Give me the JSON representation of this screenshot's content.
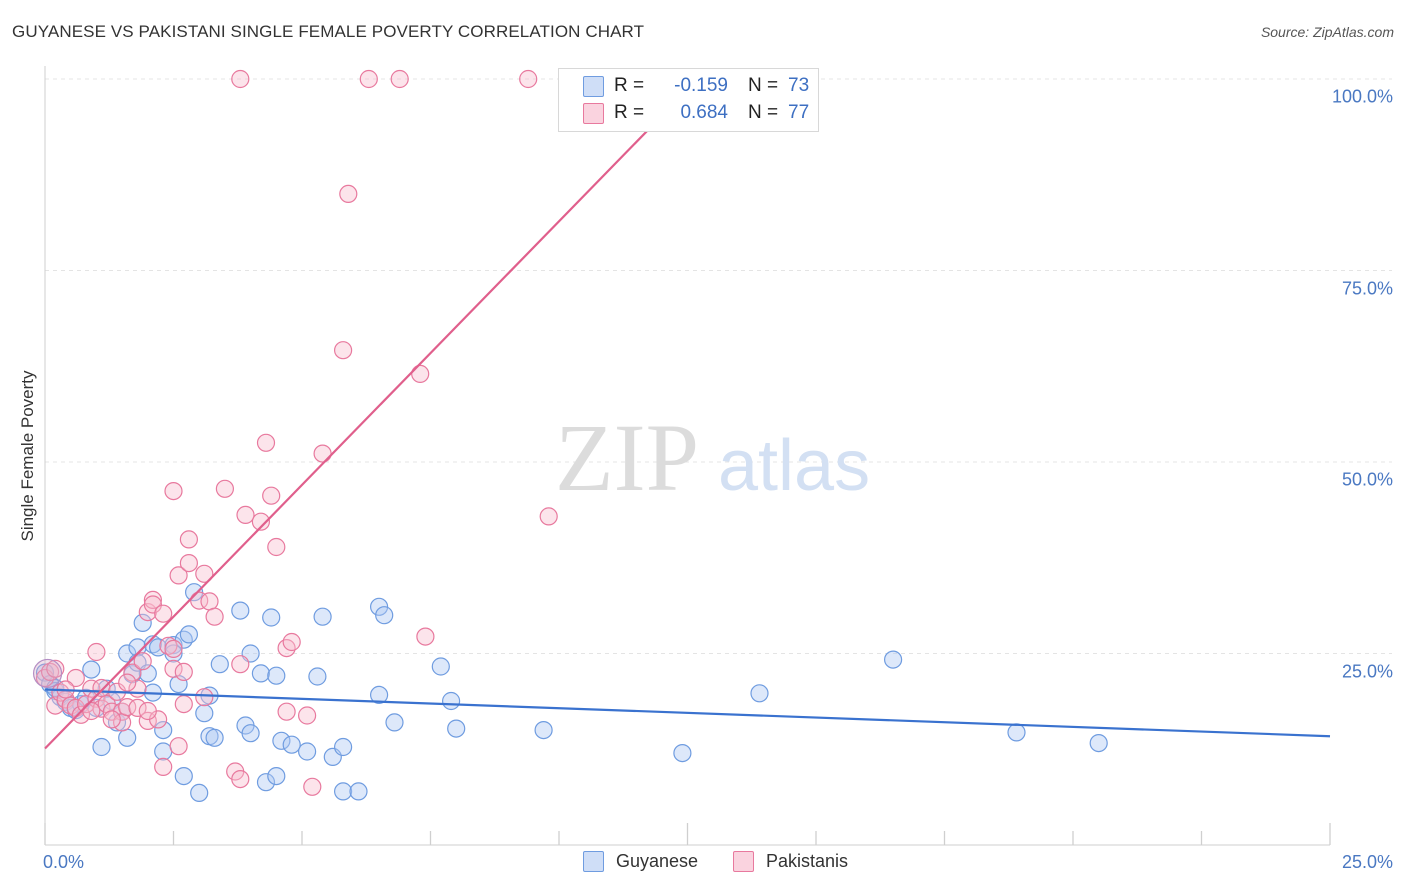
{
  "title": "GUYANESE VS PAKISTANI SINGLE FEMALE POVERTY CORRELATION CHART",
  "source": "Source: ZipAtlas.com",
  "watermark": {
    "zip": "ZIP",
    "atlas": "atlas"
  },
  "legend": {
    "series": [
      {
        "r_label": "R =",
        "r_value": "-0.159",
        "n_label": "N =",
        "n_value": "73",
        "color": "#6f9ce0",
        "fill": "#aec8f2"
      },
      {
        "r_label": "R =",
        "r_value": "0.684",
        "n_label": "N =",
        "n_value": "77",
        "color": "#e8799e",
        "fill": "#f7bfd0"
      }
    ],
    "bottom": [
      "Guyanese",
      "Pakistanis"
    ]
  },
  "chart_data": {
    "type": "scatter",
    "title": "GUYANESE VS PAKISTANI SINGLE FEMALE POVERTY CORRELATION CHART",
    "xlabel": "",
    "ylabel": "Single Female Poverty",
    "xlim": [
      0,
      25
    ],
    "ylim": [
      0,
      100
    ],
    "x_tick_labels": [
      "0.0%",
      "25.0%"
    ],
    "y_tick_labels": [
      "25.0%",
      "50.0%",
      "75.0%",
      "100.0%"
    ],
    "y_tick_values": [
      25,
      50,
      75,
      100
    ],
    "grid": true,
    "legend_position": "top-center",
    "series": [
      {
        "name": "Guyanese",
        "color": "#3a72cf",
        "stroke": "#6f9ce0",
        "fill": "#aec8f2",
        "trend": {
          "x": [
            0,
            25
          ],
          "y": [
            20.3,
            14.2
          ]
        },
        "points": [
          [
            0.0,
            22.5
          ],
          [
            0.1,
            21.0
          ],
          [
            0.2,
            20.1
          ],
          [
            0.3,
            19.3
          ],
          [
            0.4,
            18.7
          ],
          [
            0.5,
            17.9
          ],
          [
            0.6,
            17.6
          ],
          [
            0.7,
            18.4
          ],
          [
            0.8,
            19.2
          ],
          [
            0.9,
            22.9
          ],
          [
            1.0,
            17.9
          ],
          [
            1.1,
            12.8
          ],
          [
            1.2,
            20.4
          ],
          [
            1.3,
            18.8
          ],
          [
            1.4,
            16.0
          ],
          [
            1.5,
            17.4
          ],
          [
            1.6,
            25.0
          ],
          [
            1.6,
            14.0
          ],
          [
            1.7,
            22.3
          ],
          [
            1.8,
            25.8
          ],
          [
            1.8,
            23.8
          ],
          [
            1.9,
            29.0
          ],
          [
            2.0,
            22.4
          ],
          [
            2.1,
            26.2
          ],
          [
            2.1,
            19.9
          ],
          [
            2.2,
            25.8
          ],
          [
            2.3,
            12.2
          ],
          [
            2.3,
            15.0
          ],
          [
            2.5,
            26.1
          ],
          [
            2.5,
            25.0
          ],
          [
            2.6,
            21.0
          ],
          [
            2.7,
            26.8
          ],
          [
            2.7,
            9.0
          ],
          [
            2.8,
            27.5
          ],
          [
            2.9,
            33.0
          ],
          [
            3.0,
            6.8
          ],
          [
            3.1,
            17.2
          ],
          [
            3.2,
            14.2
          ],
          [
            3.2,
            19.5
          ],
          [
            3.3,
            14.0
          ],
          [
            3.4,
            23.6
          ],
          [
            3.8,
            30.6
          ],
          [
            3.9,
            15.6
          ],
          [
            4.0,
            25.0
          ],
          [
            4.0,
            14.6
          ],
          [
            4.2,
            22.4
          ],
          [
            4.3,
            8.2
          ],
          [
            4.4,
            29.7
          ],
          [
            4.5,
            22.1
          ],
          [
            4.5,
            9.0
          ],
          [
            4.6,
            13.6
          ],
          [
            4.8,
            13.1
          ],
          [
            5.1,
            12.2
          ],
          [
            5.3,
            22.0
          ],
          [
            5.4,
            29.8
          ],
          [
            5.6,
            11.5
          ],
          [
            5.8,
            12.8
          ],
          [
            5.8,
            7.0
          ],
          [
            6.1,
            7.0
          ],
          [
            6.5,
            19.6
          ],
          [
            6.5,
            31.1
          ],
          [
            6.6,
            30.0
          ],
          [
            6.8,
            16.0
          ],
          [
            7.7,
            23.3
          ],
          [
            7.9,
            18.8
          ],
          [
            8.0,
            15.2
          ],
          [
            9.7,
            15.0
          ],
          [
            12.4,
            12.0
          ],
          [
            13.9,
            19.8
          ],
          [
            16.5,
            24.2
          ],
          [
            18.9,
            14.7
          ],
          [
            20.5,
            13.3
          ],
          [
            0.2,
            20.5
          ]
        ]
      },
      {
        "name": "Pakistanis",
        "color": "#e05f8c",
        "stroke": "#e8799e",
        "fill": "#f7bfd0",
        "trend": {
          "x": [
            0,
            12.7
          ],
          "y": [
            12.6,
            100
          ]
        },
        "points": [
          [
            0.0,
            21.8
          ],
          [
            0.1,
            22.6
          ],
          [
            0.2,
            18.2
          ],
          [
            0.3,
            19.9
          ],
          [
            0.4,
            19.0
          ],
          [
            0.5,
            18.2
          ],
          [
            0.6,
            17.9
          ],
          [
            0.6,
            21.8
          ],
          [
            0.7,
            17.0
          ],
          [
            0.8,
            18.4
          ],
          [
            0.9,
            20.4
          ],
          [
            1.0,
            19.1
          ],
          [
            1.0,
            25.2
          ],
          [
            1.1,
            20.5
          ],
          [
            1.1,
            17.8
          ],
          [
            1.2,
            18.4
          ],
          [
            1.3,
            17.4
          ],
          [
            1.4,
            20.0
          ],
          [
            1.5,
            17.4
          ],
          [
            1.5,
            16.0
          ],
          [
            1.6,
            18.0
          ],
          [
            1.7,
            22.5
          ],
          [
            1.8,
            20.4
          ],
          [
            1.8,
            17.9
          ],
          [
            1.9,
            24.0
          ],
          [
            2.0,
            30.4
          ],
          [
            2.0,
            16.2
          ],
          [
            2.1,
            32.0
          ],
          [
            2.1,
            31.4
          ],
          [
            2.2,
            16.4
          ],
          [
            2.3,
            30.2
          ],
          [
            2.3,
            10.2
          ],
          [
            2.4,
            26.0
          ],
          [
            2.5,
            25.6
          ],
          [
            2.5,
            23.0
          ],
          [
            2.5,
            46.2
          ],
          [
            2.6,
            12.9
          ],
          [
            2.6,
            35.2
          ],
          [
            2.7,
            22.6
          ],
          [
            2.7,
            18.4
          ],
          [
            2.8,
            36.8
          ],
          [
            2.8,
            39.9
          ],
          [
            3.0,
            31.9
          ],
          [
            3.1,
            19.3
          ],
          [
            3.1,
            35.4
          ],
          [
            3.2,
            31.8
          ],
          [
            3.3,
            29.8
          ],
          [
            3.5,
            46.5
          ],
          [
            3.7,
            9.6
          ],
          [
            3.8,
            8.6
          ],
          [
            3.8,
            100.0
          ],
          [
            3.8,
            23.6
          ],
          [
            3.9,
            43.1
          ],
          [
            4.2,
            42.2
          ],
          [
            4.3,
            52.5
          ],
          [
            4.4,
            45.6
          ],
          [
            4.5,
            38.9
          ],
          [
            4.7,
            25.7
          ],
          [
            4.7,
            17.4
          ],
          [
            4.8,
            26.5
          ],
          [
            5.1,
            16.9
          ],
          [
            5.2,
            7.6
          ],
          [
            5.4,
            51.1
          ],
          [
            5.8,
            64.6
          ],
          [
            5.9,
            85.0
          ],
          [
            6.3,
            100.0
          ],
          [
            6.9,
            100.0
          ],
          [
            7.3,
            61.5
          ],
          [
            7.4,
            27.2
          ],
          [
            9.4,
            100.0
          ],
          [
            9.8,
            42.9
          ],
          [
            0.2,
            23.0
          ],
          [
            0.4,
            20.3
          ],
          [
            0.9,
            17.5
          ],
          [
            1.3,
            16.4
          ],
          [
            2.0,
            17.5
          ],
          [
            1.6,
            21.2
          ]
        ]
      }
    ]
  }
}
